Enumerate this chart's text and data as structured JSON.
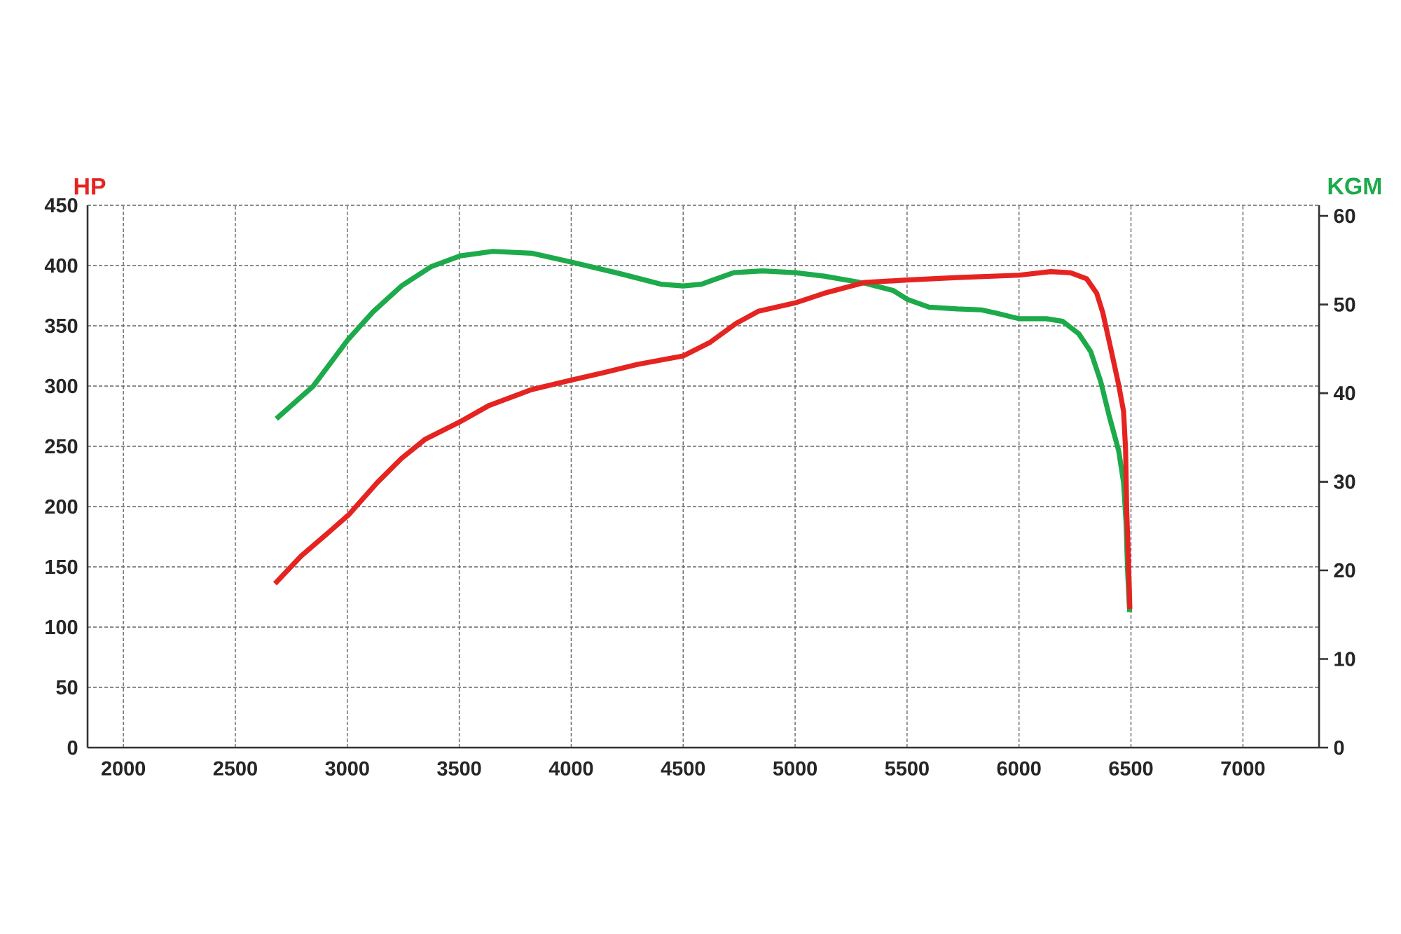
{
  "chart_data": {
    "type": "line",
    "ylabel": "HP",
    "y2label": "KGM",
    "xlim": [
      1840,
      7340
    ],
    "xticks": [
      2000,
      2500,
      3000,
      3500,
      4000,
      4500,
      5000,
      5500,
      6000,
      6500,
      7000
    ],
    "ylim": [
      0,
      450
    ],
    "yticks": [
      0,
      50,
      100,
      150,
      200,
      250,
      300,
      350,
      400,
      450
    ],
    "y2lim": [
      0,
      61.2
    ],
    "y2ticks": [
      0,
      10,
      20,
      30,
      40,
      50,
      60
    ],
    "grid": true,
    "series": [
      {
        "color": "#E52421",
        "x": [
          2677,
          2794,
          2919,
          3005,
          3134,
          3242,
          3349,
          3500,
          3634,
          3822,
          4000,
          4143,
          4297,
          4500,
          4618,
          4736,
          4835,
          5000,
          5130,
          5312,
          5500,
          5724,
          6000,
          6141,
          6231,
          6302,
          6347,
          6374,
          6410,
          6445,
          6467,
          6476,
          6481,
          6490,
          6495
        ],
        "values": [
          136,
          159,
          179,
          193,
          220,
          240,
          256,
          270,
          284,
          297,
          305,
          311,
          318,
          325,
          336,
          352,
          362,
          369,
          377,
          386,
          388,
          390,
          392,
          395,
          394,
          389,
          377,
          361,
          331,
          301,
          279,
          247,
          197,
          147,
          115
        ]
      },
      {
        "color": "#1DAA4B",
        "axis": "y2",
        "x": [
          2683,
          2848,
          3005,
          3116,
          3242,
          3376,
          3505,
          3650,
          3822,
          4000,
          4216,
          4400,
          4500,
          4582,
          4726,
          4853,
          5000,
          5130,
          5312,
          5437,
          5500,
          5598,
          5724,
          5832,
          5903,
          6000,
          6123,
          6195,
          6267,
          6320,
          6365,
          6401,
          6445,
          6467,
          6478,
          6485,
          6494
        ],
        "values": [
          37.1,
          40.8,
          46.1,
          49.2,
          52.1,
          54.3,
          55.5,
          56.0,
          55.8,
          54.8,
          53.5,
          52.3,
          52.1,
          52.3,
          53.6,
          53.8,
          53.6,
          53.2,
          52.4,
          51.6,
          50.6,
          49.7,
          49.5,
          49.4,
          49.0,
          48.4,
          48.4,
          48.1,
          46.7,
          44.7,
          41.3,
          37.6,
          33.5,
          29.9,
          25.4,
          19.9,
          15.3
        ]
      }
    ]
  }
}
